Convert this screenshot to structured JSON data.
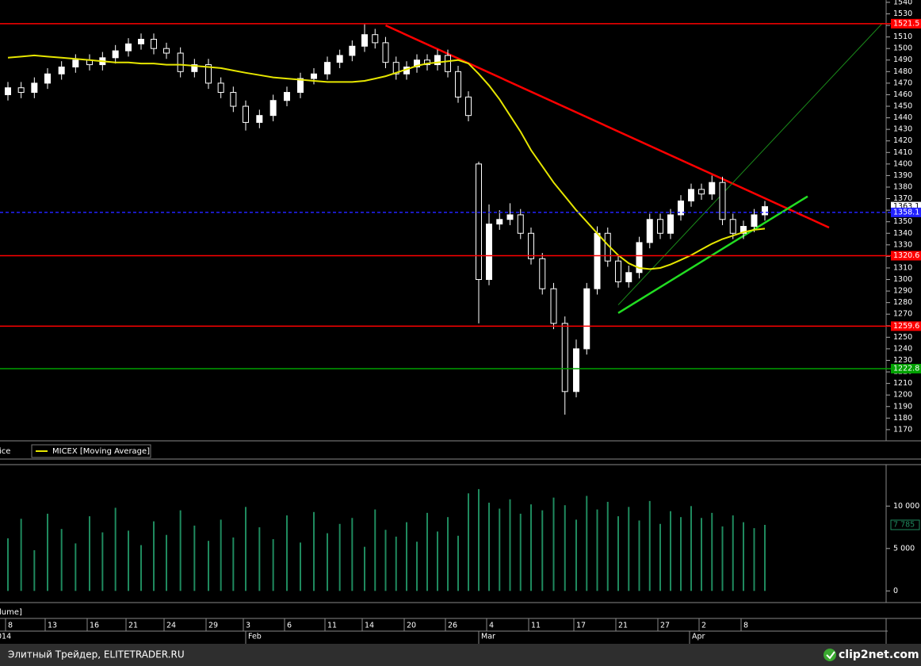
{
  "chart_data": {
    "type": "candlestick",
    "categories": [
      "8",
      null,
      null,
      "13",
      null,
      null,
      "16",
      null,
      null,
      "21",
      null,
      null,
      "24",
      null,
      null,
      "29",
      null,
      null,
      "3",
      null,
      null,
      "6",
      null,
      null,
      "11",
      null,
      null,
      "14",
      null,
      null,
      null,
      "20",
      null,
      null,
      null,
      "26",
      null,
      null,
      null,
      "4",
      null,
      null,
      null,
      "11",
      null,
      null,
      null,
      "17",
      null,
      null,
      null,
      "21",
      null,
      null,
      null,
      "27",
      null,
      null,
      null,
      "2",
      null,
      null,
      null,
      "8",
      null,
      null
    ],
    "months": [
      "014",
      "Feb",
      "Mar",
      "Apr"
    ],
    "candle_color": "#ffffff",
    "open": [
      1460,
      1466,
      1462,
      1470,
      1478,
      1484,
      1490,
      1486,
      1492,
      1498,
      1504,
      1508,
      1500,
      1496,
      1480,
      1486,
      1470,
      1462,
      1450,
      1436,
      1442,
      1455,
      1462,
      1474,
      1478,
      1488,
      1494,
      1502,
      1512,
      1505,
      1488,
      1478,
      1484,
      1490,
      1486,
      1494,
      1480,
      1458,
      1400,
      1300,
      1348,
      1352,
      1356,
      1340,
      1318,
      1292,
      1262,
      1203,
      1240,
      1292,
      1340,
      1316,
      1298,
      1306,
      1332,
      1352,
      1340,
      1356,
      1368,
      1378,
      1374,
      1384,
      1352,
      1340,
      1346,
      1356
    ],
    "high": [
      1471,
      1471,
      1475,
      1483,
      1489,
      1495,
      1495,
      1497,
      1503,
      1509,
      1513,
      1513,
      1505,
      1501,
      1491,
      1491,
      1475,
      1467,
      1455,
      1447,
      1460,
      1467,
      1479,
      1483,
      1493,
      1499,
      1507,
      1521,
      1517,
      1510,
      1493,
      1489,
      1495,
      1495,
      1499,
      1499,
      1485,
      1463,
      1402,
      1365,
      1360,
      1366,
      1361,
      1345,
      1323,
      1297,
      1268,
      1248,
      1297,
      1346,
      1345,
      1321,
      1312,
      1337,
      1357,
      1357,
      1361,
      1373,
      1383,
      1383,
      1390,
      1389,
      1357,
      1351,
      1361,
      1368
    ],
    "low": [
      1455,
      1457,
      1457,
      1465,
      1473,
      1479,
      1481,
      1481,
      1487,
      1493,
      1499,
      1495,
      1491,
      1475,
      1475,
      1465,
      1457,
      1445,
      1429,
      1431,
      1437,
      1450,
      1457,
      1469,
      1473,
      1483,
      1489,
      1497,
      1500,
      1483,
      1473,
      1473,
      1479,
      1481,
      1481,
      1475,
      1453,
      1437,
      1262,
      1295,
      1343,
      1347,
      1335,
      1313,
      1287,
      1257,
      1183,
      1198,
      1235,
      1287,
      1311,
      1293,
      1293,
      1301,
      1327,
      1335,
      1335,
      1351,
      1363,
      1369,
      1369,
      1347,
      1335,
      1335,
      1341,
      1351
    ],
    "close": [
      1466,
      1462,
      1470,
      1478,
      1484,
      1490,
      1486,
      1492,
      1498,
      1504,
      1508,
      1500,
      1496,
      1480,
      1486,
      1470,
      1462,
      1450,
      1436,
      1442,
      1455,
      1462,
      1474,
      1478,
      1488,
      1494,
      1502,
      1512,
      1505,
      1488,
      1478,
      1484,
      1490,
      1486,
      1494,
      1480,
      1458,
      1442,
      1300,
      1348,
      1352,
      1356,
      1340,
      1318,
      1292,
      1262,
      1203,
      1240,
      1292,
      1340,
      1316,
      1298,
      1306,
      1332,
      1352,
      1340,
      1356,
      1368,
      1378,
      1374,
      1384,
      1352,
      1340,
      1346,
      1356,
      1363.1
    ],
    "ylim": [
      1161,
      1542
    ],
    "yticks": [
      1170,
      1180,
      1190,
      1200,
      1210,
      1220,
      1230,
      1240,
      1250,
      1260,
      1270,
      1280,
      1290,
      1300,
      1310,
      1320,
      1330,
      1340,
      1350,
      1360,
      1370,
      1380,
      1390,
      1400,
      1410,
      1420,
      1430,
      1440,
      1450,
      1460,
      1470,
      1480,
      1490,
      1500,
      1510,
      1520,
      1530,
      1540
    ],
    "price_legend": "ice",
    "moving_average": {
      "name": "MICEX [Moving Average]",
      "color": "#e6e600",
      "values": [
        1492,
        1493,
        1494,
        1493,
        1492,
        1491,
        1490,
        1489,
        1488,
        1488,
        1487,
        1487,
        1486,
        1486,
        1485,
        1484,
        1483,
        1481,
        1479,
        1477,
        1475,
        1474,
        1473,
        1472,
        1471,
        1471,
        1471,
        1472,
        1474,
        1476,
        1479,
        1482,
        1485,
        1487,
        1488,
        1489,
        1490,
        1487,
        1478,
        1468,
        1456,
        1442,
        1428,
        1412,
        1398,
        1384,
        1372,
        1360,
        1350,
        1340,
        1330,
        1321,
        1314,
        1310,
        1309,
        1310,
        1313,
        1317,
        1321,
        1326,
        1331,
        1335,
        1338,
        1341,
        1343,
        1344
      ]
    },
    "levels": [
      {
        "value": 1521.5,
        "color": "#ff0000"
      },
      {
        "value": 1358.1,
        "color": "#2222ff"
      },
      {
        "value": 1320.6,
        "color": "#ff0000"
      },
      {
        "value": 1259.6,
        "color": "#ff0000"
      },
      {
        "value": 1222.8,
        "color": "#00a000"
      }
    ],
    "trendlines": [
      {
        "color": "#ff0000",
        "start": [
          29,
          1520
        ],
        "end": [
          71,
          1345
        ]
      },
      {
        "color": "#22dd22",
        "start": [
          51,
          1271
        ],
        "end": [
          69,
          1372
        ]
      },
      {
        "color": "#1a8a1a",
        "start": [
          51,
          1278
        ],
        "end": [
          76,
          1522
        ]
      }
    ],
    "volume": {
      "legend": "lume]",
      "color": "#1f8a5e",
      "values": [
        6200,
        8500,
        4800,
        9100,
        7300,
        5600,
        8800,
        6900,
        9800,
        7100,
        5400,
        8200,
        6600,
        9500,
        7700,
        5900,
        8400,
        6300,
        9900,
        7500,
        6100,
        8900,
        5700,
        9300,
        6800,
        7900,
        8600,
        5200,
        9600,
        7200,
        6400,
        8100,
        5800,
        9200,
        7000,
        8700,
        6500,
        11500,
        12000,
        10400,
        9700,
        10800,
        9100,
        10200,
        9500,
        11000,
        10100,
        8400,
        11200,
        9600,
        10500,
        8800,
        9900,
        8300,
        10600,
        7900,
        9400,
        8700,
        10000,
        8600,
        9200,
        7600,
        8900,
        8100,
        7400,
        7785
      ],
      "value_labels": [
        null,
        null,
        null,
        null,
        null,
        null,
        null,
        null,
        null,
        null,
        null,
        null,
        null,
        null,
        null,
        null,
        null,
        null,
        null,
        null,
        null,
        null,
        null,
        null,
        null,
        null,
        null,
        null,
        null,
        null,
        null,
        null,
        null,
        null,
        null,
        null,
        null,
        null,
        null,
        null,
        null,
        null,
        null,
        null,
        null,
        null,
        null,
        null,
        null,
        null,
        null,
        null,
        null,
        null,
        null,
        null,
        null,
        null,
        null,
        null,
        null,
        null,
        null,
        null,
        null,
        "7 785"
      ],
      "ylim": [
        -1000,
        14700
      ],
      "yticks": [
        0,
        {
          "value": 5000,
          "label": "5 000"
        },
        {
          "value": 10000,
          "label": "10 000"
        }
      ]
    }
  },
  "footer": {
    "source": "Элитный Трейдер, ELITETRADER.RU",
    "logo": "clip2net.com"
  }
}
